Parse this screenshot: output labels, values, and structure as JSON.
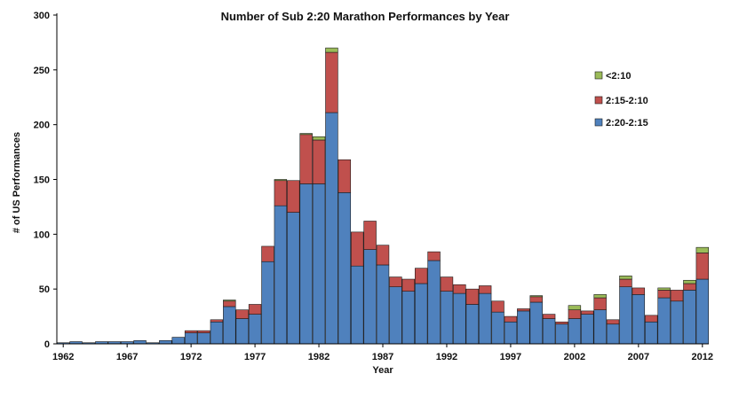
{
  "chart_data": {
    "type": "bar",
    "stacked": true,
    "title": "Number of Sub 2:20 Marathon Performances by Year",
    "xlabel": "Year",
    "ylabel": "# of US Performances",
    "ylim": [
      0,
      300
    ],
    "yticks": [
      0,
      50,
      100,
      150,
      200,
      250,
      300
    ],
    "x_tick_labels": [
      "1962",
      "1967",
      "1972",
      "1977",
      "1982",
      "1987",
      "1992",
      "1997",
      "2002",
      "2007",
      "2012"
    ],
    "categories": [
      1962,
      1963,
      1964,
      1965,
      1966,
      1967,
      1968,
      1969,
      1970,
      1971,
      1972,
      1973,
      1974,
      1975,
      1976,
      1977,
      1978,
      1979,
      1980,
      1981,
      1982,
      1983,
      1984,
      1985,
      1986,
      1987,
      1988,
      1989,
      1990,
      1991,
      1992,
      1993,
      1994,
      1995,
      1996,
      1997,
      1998,
      1999,
      2000,
      2001,
      2002,
      2003,
      2004,
      2005,
      2006,
      2007,
      2008,
      2009,
      2010,
      2011,
      2012
    ],
    "series": [
      {
        "name": "2:20-2:15",
        "color": "#4F81BD",
        "values": [
          1,
          2,
          1,
          2,
          2,
          2,
          3,
          1,
          3,
          6,
          10,
          10,
          20,
          34,
          23,
          27,
          75,
          126,
          120,
          146,
          146,
          211,
          138,
          71,
          86,
          72,
          52,
          48,
          55,
          76,
          48,
          46,
          36,
          46,
          29,
          20,
          30,
          38,
          23,
          18,
          23,
          27,
          31,
          18,
          52,
          45,
          20,
          42,
          39,
          49,
          59
        ]
      },
      {
        "name": "2:15-2:10",
        "color": "#C0504D",
        "values": [
          0,
          0,
          0,
          0,
          0,
          0,
          0,
          0,
          0,
          0,
          2,
          2,
          2,
          5,
          8,
          9,
          14,
          23,
          29,
          45,
          40,
          55,
          30,
          31,
          26,
          18,
          9,
          11,
          14,
          8,
          13,
          8,
          14,
          7,
          10,
          5,
          2,
          5,
          4,
          2,
          8,
          3,
          11,
          4,
          7,
          6,
          6,
          7,
          10,
          6,
          24
        ]
      },
      {
        "name": "<2:10",
        "color": "#9BBB59",
        "values": [
          0,
          0,
          0,
          0,
          0,
          0,
          0,
          0,
          0,
          0,
          0,
          0,
          0,
          1,
          0,
          0,
          0,
          1,
          0,
          1,
          3,
          4,
          0,
          0,
          0,
          0,
          0,
          0,
          0,
          0,
          0,
          0,
          0,
          0,
          0,
          0,
          0,
          1,
          0,
          0,
          4,
          0,
          3,
          0,
          3,
          0,
          0,
          2,
          0,
          3,
          5
        ]
      }
    ],
    "legend_order": [
      "<2:10",
      "2:15-2:10",
      "2:20-2:15"
    ],
    "legend_position": "right",
    "grid": false
  }
}
